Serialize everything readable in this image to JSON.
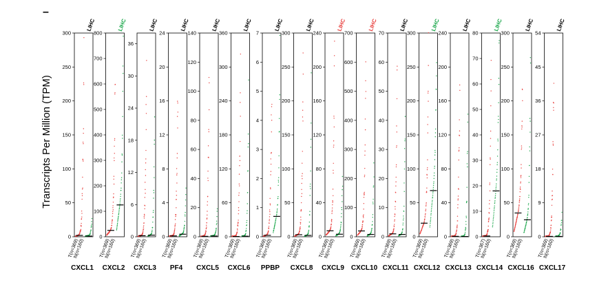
{
  "figure": {
    "ylabel": "Transcripts Per Million (TPM)",
    "panel_letter": "–",
    "colors": {
      "tumor": "#e8403e",
      "normal": "#1aa64a",
      "median": "#000000",
      "axis": "#000000"
    }
  },
  "chart_data": [
    {
      "type": "scatter",
      "gene": "CXCL1",
      "tag": "LIHC",
      "tag_color": "#000000",
      "ylim": [
        0,
        300
      ],
      "yticks": [
        0,
        50,
        100,
        150,
        200,
        250,
        300
      ],
      "x_labels": [
        "T(n=369)",
        "N(n=160)"
      ],
      "tumor_median": 2,
      "normal_median": 1,
      "tumor_max": 300,
      "normal_max": 30
    },
    {
      "type": "scatter",
      "gene": "CXCL2",
      "tag": "LIHC",
      "tag_color": "#1aa64a",
      "ylim": [
        0,
        800
      ],
      "yticks": [
        0,
        100,
        200,
        300,
        400,
        500,
        600,
        700,
        800
      ],
      "x_labels": [
        "T(n=369)",
        "N(n=160)"
      ],
      "tumor_median": 25,
      "normal_median": 125,
      "tumor_max": 800,
      "normal_max": 780
    },
    {
      "type": "scatter",
      "gene": "CXCL3",
      "tag": "LIHC",
      "tag_color": "#000000",
      "ylim": [
        0,
        38
      ],
      "yticks": [
        0,
        6,
        12,
        18,
        24,
        30,
        36
      ],
      "x_labels": [
        "T(n=369)",
        "N(n=160)"
      ],
      "tumor_median": 0.2,
      "normal_median": 0.3,
      "tumor_max": 38,
      "normal_max": 25
    },
    {
      "type": "scatter",
      "gene": "PF4",
      "tag": "LIHC",
      "tag_color": "#000000",
      "ylim": [
        0,
        24
      ],
      "yticks": [
        0,
        4,
        8,
        12,
        16,
        20,
        24
      ],
      "x_labels": [
        "T(n=369)",
        "N(n=160)"
      ],
      "tumor_median": 0.1,
      "normal_median": 0.3,
      "tumor_max": 24,
      "normal_max": 6
    },
    {
      "type": "scatter",
      "gene": "CXCL5",
      "tag": "LIHC",
      "tag_color": "#000000",
      "ylim": [
        0,
        140
      ],
      "yticks": [
        0,
        20,
        40,
        60,
        80,
        100,
        120,
        140
      ],
      "x_labels": [
        "T(n=369)",
        "N(n=160)"
      ],
      "tumor_median": 0.3,
      "normal_median": 0.5,
      "tumor_max": 140,
      "normal_max": 20
    },
    {
      "type": "scatter",
      "gene": "CXCL6",
      "tag": "LIHC",
      "tag_color": "#000000",
      "ylim": [
        0,
        360
      ],
      "yticks": [
        0,
        60,
        120,
        180,
        240,
        300,
        360
      ],
      "x_labels": [
        "T(n=369)",
        "N(n=160)"
      ],
      "tumor_median": 0.5,
      "normal_median": 1,
      "tumor_max": 360,
      "normal_max": 290
    },
    {
      "type": "scatter",
      "gene": "PPBP",
      "tag": "LIHC",
      "tag_color": "#000000",
      "ylim": [
        0,
        7
      ],
      "yticks": [
        0,
        1,
        2,
        3,
        4,
        5,
        6,
        7
      ],
      "x_labels": [
        "T(n=369)",
        "N(n=160)"
      ],
      "tumor_median": 0.05,
      "normal_median": 0.7,
      "tumor_max": 7,
      "normal_max": 6.5
    },
    {
      "type": "scatter",
      "gene": "CXCL8",
      "tag": "LIHC",
      "tag_color": "#000000",
      "ylim": [
        0,
        300
      ],
      "yticks": [
        0,
        50,
        100,
        150,
        200,
        250,
        300
      ],
      "x_labels": [
        "T(n=369)",
        "N(n=160)"
      ],
      "tumor_median": 3,
      "normal_median": 2,
      "tumor_max": 300,
      "normal_max": 240
    },
    {
      "type": "scatter",
      "gene": "CXCL9",
      "tag": "LIHC",
      "tag_color": "#e8403e",
      "ylim": [
        0,
        240
      ],
      "yticks": [
        0,
        40,
        80,
        120,
        160,
        200,
        240
      ],
      "x_labels": [
        "T(n=369)",
        "N(n=160)"
      ],
      "tumor_median": 7,
      "normal_median": 3,
      "tumor_max": 240,
      "normal_max": 90
    },
    {
      "type": "scatter",
      "gene": "CXCL10",
      "tag": "LIHC",
      "tag_color": "#e8403e",
      "ylim": [
        0,
        700
      ],
      "yticks": [
        0,
        100,
        200,
        300,
        400,
        500,
        600,
        700
      ],
      "x_labels": [
        "T(n=369)",
        "N(n=160)"
      ],
      "tumor_median": 20,
      "normal_median": 8,
      "tumor_max": 700,
      "normal_max": 300
    },
    {
      "type": "scatter",
      "gene": "CXCL11",
      "tag": "LIHC",
      "tag_color": "#000000",
      "ylim": [
        0,
        70
      ],
      "yticks": [
        0,
        10,
        20,
        30,
        40,
        50,
        60,
        70
      ],
      "x_labels": [
        "T(n=369)",
        "N(n=160)"
      ],
      "tumor_median": 1,
      "normal_median": 0.8,
      "tumor_max": 70,
      "normal_max": 60
    },
    {
      "type": "scatter",
      "gene": "CXCL12",
      "tag": "LIHC",
      "tag_color": "#1aa64a",
      "ylim": [
        0,
        300
      ],
      "yticks": [
        0,
        50,
        100,
        150,
        200,
        250,
        300
      ],
      "x_labels": [
        "T(n=369)",
        "N(n=160)"
      ],
      "tumor_median": 20,
      "normal_median": 68,
      "tumor_max": 300,
      "normal_max": 260
    },
    {
      "type": "scatter",
      "gene": "CXCL13",
      "tag": "LIHC",
      "tag_color": "#000000",
      "ylim": [
        0,
        240
      ],
      "yticks": [
        0,
        40,
        80,
        120,
        160,
        200,
        240
      ],
      "x_labels": [
        "T(n=369)",
        "N(n=160)"
      ],
      "tumor_median": 0.5,
      "normal_median": 0.3,
      "tumor_max": 240,
      "normal_max": 200
    },
    {
      "type": "scatter",
      "gene": "CXCL14",
      "tag": "LIHC",
      "tag_color": "#1aa64a",
      "ylim": [
        0,
        80
      ],
      "yticks": [
        0,
        10,
        20,
        30,
        40,
        50,
        60,
        70,
        80
      ],
      "x_labels": [
        "T(n=367)",
        "N(n=160)"
      ],
      "tumor_median": 0.3,
      "normal_median": 18,
      "tumor_max": 80,
      "normal_max": 78
    },
    {
      "type": "scatter",
      "gene": "CXCL16",
      "tag": "LIHC",
      "tag_color": "#000000",
      "ylim": [
        0,
        300
      ],
      "yticks": [
        0,
        50,
        100,
        150,
        200,
        250,
        300
      ],
      "x_labels": [
        "T(n=369)",
        "N(n=160)"
      ],
      "tumor_median": 35,
      "normal_median": 25,
      "tumor_max": 260,
      "normal_max": 300
    },
    {
      "type": "scatter",
      "gene": "CXCL17",
      "tag": "LIHC",
      "tag_color": "#000000",
      "ylim": [
        0,
        54
      ],
      "yticks": [
        0,
        9,
        18,
        27,
        36,
        45,
        54
      ],
      "x_labels": [
        "T(n=369)",
        "N(n=160)"
      ],
      "tumor_median": 0.1,
      "normal_median": 0.1,
      "tumor_max": 54,
      "normal_max": 8
    }
  ]
}
